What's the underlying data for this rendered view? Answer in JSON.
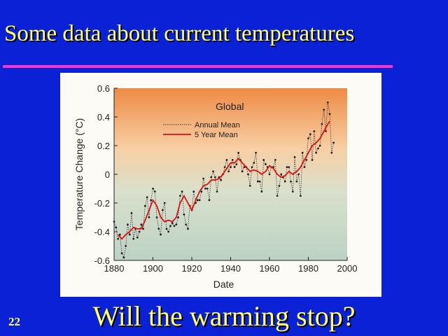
{
  "slide": {
    "title": "Some data about current temperatures",
    "caption": "Will the warming stop?",
    "number": "22",
    "colors": {
      "background": "#0b21d6",
      "text": "#ffff66",
      "rule": "#ff33cc"
    }
  },
  "chart_data": {
    "type": "line",
    "title": "Global",
    "xlabel": "Date",
    "ylabel": "Temperature Change (°C)",
    "xlim": [
      1880,
      2000
    ],
    "ylim": [
      -0.6,
      0.6
    ],
    "x_ticks": [
      1880,
      1900,
      1920,
      1940,
      1960,
      1980,
      2000
    ],
    "y_ticks": [
      {
        "v": 0.6,
        "label": "0.6"
      },
      {
        "v": 0.4,
        "label": "0.4"
      },
      {
        "v": 0.2,
        "label": "0.2"
      },
      {
        "v": 0,
        "label": "0"
      },
      {
        "v": -0.2,
        "label": "-0.2"
      },
      {
        "v": -0.4,
        "label": "-0.4"
      },
      {
        "v": -0.6,
        "label": "-0.6"
      }
    ],
    "grid": false,
    "legend": {
      "position": "top-center",
      "entries": [
        "Annual Mean",
        "5 Year Mean"
      ]
    },
    "background_gradient": [
      "#ee8a44",
      "#f7cfa4",
      "#d9e0cc",
      "#bcd2c4"
    ],
    "series": [
      {
        "name": "Annual Mean",
        "style": "dotted-markers",
        "color": "#333333",
        "x": [
          1880,
          1881,
          1882,
          1883,
          1884,
          1885,
          1886,
          1887,
          1888,
          1889,
          1890,
          1891,
          1892,
          1893,
          1894,
          1895,
          1896,
          1897,
          1898,
          1899,
          1900,
          1901,
          1902,
          1903,
          1904,
          1905,
          1906,
          1907,
          1908,
          1909,
          1910,
          1911,
          1912,
          1913,
          1914,
          1915,
          1916,
          1917,
          1918,
          1919,
          1920,
          1921,
          1922,
          1923,
          1924,
          1925,
          1926,
          1927,
          1928,
          1929,
          1930,
          1931,
          1932,
          1933,
          1934,
          1935,
          1936,
          1937,
          1938,
          1939,
          1940,
          1941,
          1942,
          1943,
          1944,
          1945,
          1946,
          1947,
          1948,
          1949,
          1950,
          1951,
          1952,
          1953,
          1954,
          1955,
          1956,
          1957,
          1958,
          1959,
          1960,
          1961,
          1962,
          1963,
          1964,
          1965,
          1966,
          1967,
          1968,
          1969,
          1970,
          1971,
          1972,
          1973,
          1974,
          1975,
          1976,
          1977,
          1978,
          1979,
          1980,
          1981,
          1982,
          1983,
          1984,
          1985,
          1986,
          1987,
          1988,
          1989,
          1990,
          1991,
          1992,
          1993
        ],
        "values": [
          -0.33,
          -0.37,
          -0.45,
          -0.42,
          -0.55,
          -0.58,
          -0.5,
          -0.35,
          -0.42,
          -0.27,
          -0.45,
          -0.38,
          -0.44,
          -0.4,
          -0.35,
          -0.38,
          -0.22,
          -0.16,
          -0.3,
          -0.18,
          -0.1,
          -0.12,
          -0.3,
          -0.38,
          -0.42,
          -0.25,
          -0.2,
          -0.38,
          -0.4,
          -0.36,
          -0.34,
          -0.36,
          -0.35,
          -0.3,
          -0.15,
          -0.12,
          -0.28,
          -0.35,
          -0.38,
          -0.22,
          -0.25,
          -0.12,
          -0.2,
          -0.18,
          -0.18,
          -0.12,
          -0.03,
          -0.1,
          -0.1,
          -0.18,
          -0.02,
          0.02,
          -0.02,
          -0.12,
          -0.02,
          -0.04,
          0.0,
          0.05,
          0.1,
          0.02,
          0.05,
          0.1,
          0.05,
          0.07,
          0.15,
          0.1,
          0.02,
          0.05,
          0.05,
          0.0,
          -0.08,
          0.05,
          0.08,
          0.15,
          -0.05,
          -0.05,
          -0.12,
          0.1,
          0.07,
          0.05,
          0.0,
          0.05,
          0.05,
          0.1,
          -0.15,
          -0.08,
          0.0,
          -0.02,
          -0.05,
          0.05,
          0.05,
          -0.05,
          -0.12,
          0.12,
          -0.05,
          0.0,
          -0.15,
          0.15,
          0.05,
          0.1,
          0.25,
          0.28,
          0.1,
          0.3,
          0.15,
          0.18,
          0.2,
          0.35,
          0.45,
          0.3,
          0.5,
          0.42,
          0.15,
          0.22
        ]
      },
      {
        "name": "5 Year Mean",
        "style": "solid",
        "color": "#dd1111",
        "x": [
          1882,
          1884,
          1886,
          1888,
          1890,
          1892,
          1894,
          1896,
          1898,
          1900,
          1902,
          1904,
          1906,
          1908,
          1910,
          1912,
          1914,
          1916,
          1918,
          1920,
          1922,
          1924,
          1926,
          1928,
          1930,
          1932,
          1934,
          1936,
          1938,
          1940,
          1942,
          1944,
          1946,
          1948,
          1950,
          1952,
          1954,
          1956,
          1958,
          1960,
          1962,
          1964,
          1966,
          1968,
          1970,
          1972,
          1974,
          1976,
          1978,
          1980,
          1982,
          1984,
          1986,
          1988,
          1990,
          1991
        ],
        "values": [
          -0.42,
          -0.45,
          -0.42,
          -0.4,
          -0.37,
          -0.38,
          -0.38,
          -0.32,
          -0.25,
          -0.18,
          -0.22,
          -0.3,
          -0.33,
          -0.32,
          -0.33,
          -0.3,
          -0.2,
          -0.15,
          -0.2,
          -0.25,
          -0.18,
          -0.12,
          -0.08,
          -0.07,
          -0.04,
          -0.04,
          -0.03,
          0.0,
          0.04,
          0.08,
          0.08,
          0.11,
          0.08,
          0.05,
          0.02,
          0.03,
          0.02,
          0.0,
          0.02,
          0.06,
          0.04,
          0.0,
          -0.02,
          -0.01,
          0.02,
          0.0,
          0.02,
          0.05,
          0.1,
          0.15,
          0.2,
          0.22,
          0.25,
          0.3,
          0.35,
          0.37
        ]
      }
    ]
  }
}
